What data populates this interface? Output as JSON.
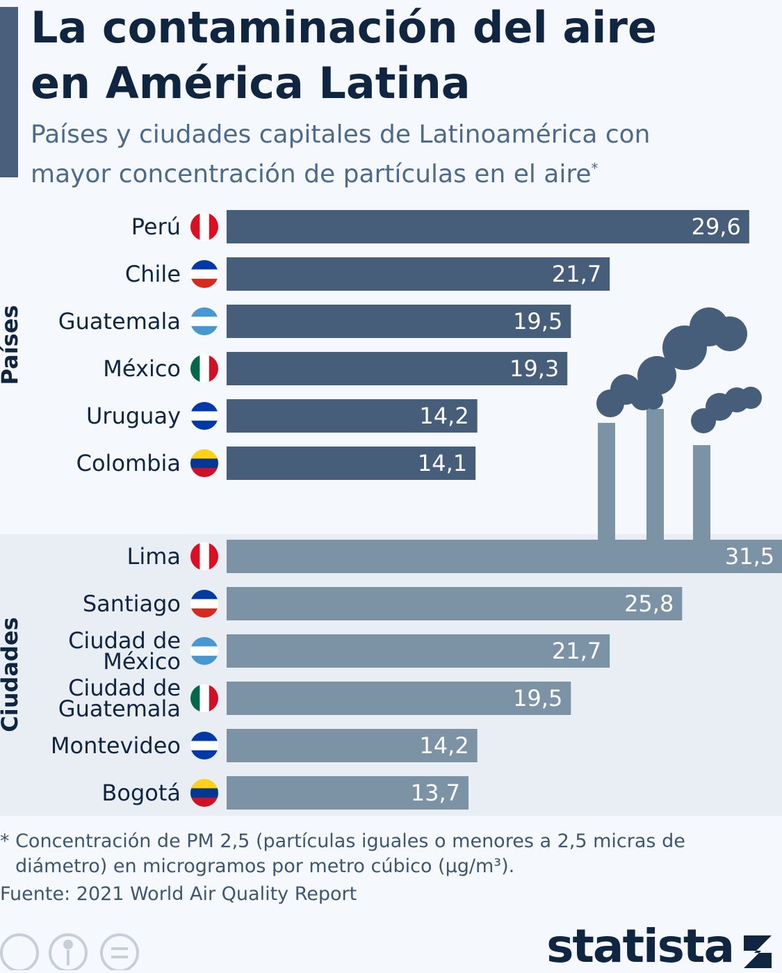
{
  "header": {
    "title": "La contaminación del aire en América Latina",
    "subtitle": "Países y ciudades capitales de Latinoamérica con mayor concentración de partículas en el aire",
    "subtitle_mark": "*"
  },
  "chart_data": [
    {
      "type": "bar",
      "label": "Países",
      "categories": [
        "Perú",
        "Chile",
        "Guatemala",
        "México",
        "Uruguay",
        "Colombia"
      ],
      "values": [
        29.6,
        21.7,
        19.5,
        19.3,
        14.2,
        14.1
      ],
      "value_labels": [
        "29,6",
        "21,7",
        "19,5",
        "19,3",
        "14,2",
        "14,1"
      ],
      "color": "#475e7b"
    },
    {
      "type": "bar",
      "label": "Ciudades",
      "categories": [
        "Lima",
        "Santiago",
        "Ciudad de México",
        "Ciudad de Guatemala",
        "Montevideo",
        "Bogotá"
      ],
      "values": [
        31.5,
        25.8,
        21.7,
        19.5,
        14.2,
        13.7
      ],
      "value_labels": [
        "31,5",
        "25,8",
        "21,7",
        "19,5",
        "14,2",
        "13,7"
      ],
      "color": "#7b93a5"
    }
  ],
  "footer": {
    "note": "* Concentración de PM 2,5 (partículas iguales o menores a 2,5 micras de diámetro) en microgramos por metro cúbico (µg/m³).",
    "source": "Fuente: 2021 World Air Quality Report",
    "brand": "statista"
  }
}
